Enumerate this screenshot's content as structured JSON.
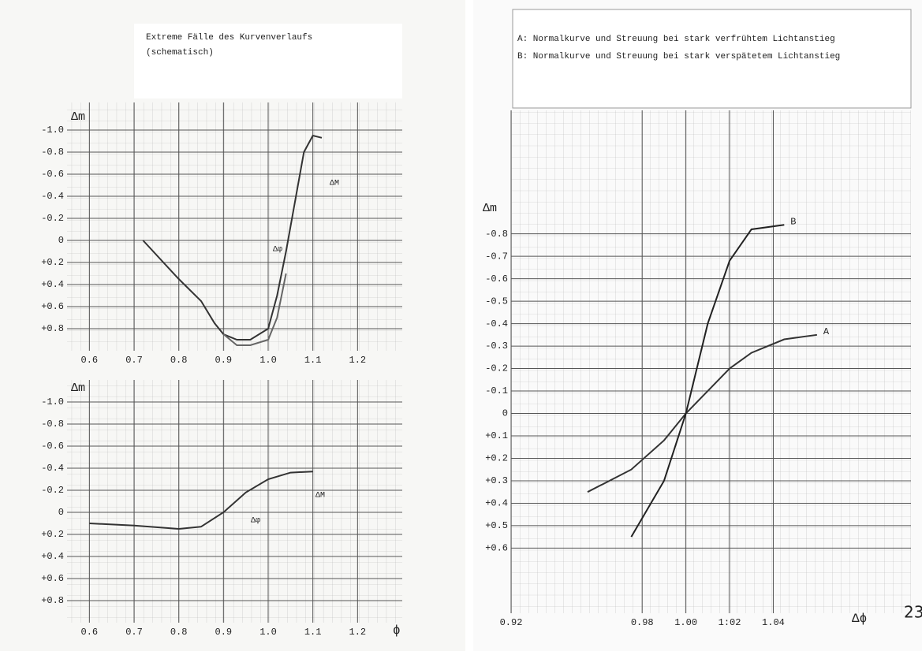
{
  "chart_data": [
    {
      "type": "line",
      "title": "Extreme Fälle des Kurvenverlaufs",
      "subtitle": "(schematisch)",
      "y_label": "Δm",
      "annotations": [
        "ΔM",
        "Δφ"
      ],
      "x": [
        0.72,
        0.8,
        0.85,
        0.88,
        0.9,
        0.93,
        0.96,
        1.0,
        1.02,
        1.04,
        1.06,
        1.08,
        1.1,
        1.12
      ],
      "series": [
        {
          "color": "#333333",
          "values": [
            0,
            0.35,
            0.55,
            0.75,
            0.85,
            0.9,
            0.9,
            0.8,
            0.5,
            0.1,
            -0.35,
            -0.8,
            -0.95,
            -0.93
          ]
        },
        {
          "color": "#666666",
          "values": [
            null,
            null,
            null,
            null,
            0.85,
            0.95,
            0.95,
            0.9,
            0.7,
            0.3,
            null,
            null,
            null,
            null
          ]
        }
      ],
      "xlim": [
        0.55,
        1.3
      ],
      "ylim": [
        1.0,
        -1.25
      ],
      "xticks": [
        0.6,
        0.7,
        0.8,
        0.9,
        {
          "value": 1,
          "label": "1.0"
        },
        1.1,
        1.2
      ],
      "yticks": [
        {
          "value": -1,
          "label": "-1.0"
        },
        -0.8,
        -0.6,
        -0.4,
        -0.2,
        0,
        {
          "value": 0.2,
          "label": "+0.2"
        },
        {
          "value": 0.4,
          "label": "+0.4"
        },
        {
          "value": 0.6,
          "label": "+0.6"
        },
        {
          "value": 0.8,
          "label": "+0.8"
        }
      ],
      "grid": true
    },
    {
      "type": "line",
      "y_label": "Δm",
      "x_label": "ϕ",
      "annotations": [
        "ΔM",
        "Δφ"
      ],
      "x": [
        0.6,
        0.7,
        0.8,
        0.85,
        0.9,
        0.95,
        1.0,
        1.05,
        1.1
      ],
      "series": [
        {
          "color": "#333333",
          "values": [
            0.1,
            0.12,
            0.15,
            0.13,
            0,
            -0.18,
            -0.3,
            -0.36,
            -0.37
          ]
        }
      ],
      "xlim": [
        0.55,
        1.3
      ],
      "ylim": [
        1.0,
        -1.2
      ],
      "xticks": [
        0.6,
        0.7,
        0.8,
        0.9,
        {
          "value": 1,
          "label": "1.0"
        },
        1.1,
        1.2
      ],
      "yticks": [
        {
          "value": -1,
          "label": "-1.0"
        },
        -0.8,
        -0.6,
        -0.4,
        -0.2,
        0,
        {
          "value": 0.2,
          "label": "+0.2"
        },
        {
          "value": 0.4,
          "label": "+0.4"
        },
        {
          "value": 0.6,
          "label": "+0.6"
        },
        {
          "value": 0.8,
          "label": "+0.8"
        }
      ],
      "grid": true
    },
    {
      "type": "line",
      "title": "A: Normalkurve und Streuung bei stark verfrühtem Lichtanstieg",
      "subtitle": "B: Normalkurve und Streuung bei stark verspätetem Lichtanstieg",
      "y_label": "Δm",
      "x_label": "Δϕ",
      "x": [
        0.955,
        0.975,
        0.99,
        1.0,
        1.01,
        1.02,
        1.03,
        1.045,
        1.06
      ],
      "series": [
        {
          "name": "A",
          "color": "#333333",
          "values": [
            0.35,
            0.25,
            0.12,
            0,
            -0.1,
            -0.2,
            -0.27,
            -0.33,
            -0.35
          ]
        },
        {
          "name": "B",
          "color": "#222222",
          "values": [
            null,
            0.55,
            0.3,
            0,
            -0.4,
            -0.68,
            -0.82,
            -0.84,
            null
          ]
        }
      ],
      "xlim": [
        0.92,
        1.103
      ],
      "ylim": [
        0.89,
        -1.35
      ],
      "xticks": [
        0.92,
        0.98,
        {
          "value": 1,
          "label": "1.00"
        },
        {
          "value": 1.02,
          "label": "1:02"
        },
        1.04
      ],
      "yticks": [
        -0.8,
        -0.7,
        -0.6,
        -0.5,
        -0.4,
        -0.3,
        -0.2,
        -0.1,
        0,
        {
          "value": 0.1,
          "label": "+0.1"
        },
        {
          "value": 0.2,
          "label": "+0.2"
        },
        {
          "value": 0.3,
          "label": "+0.3"
        },
        {
          "value": 0.4,
          "label": "+0.4"
        },
        {
          "value": 0.5,
          "label": "+0.5"
        },
        {
          "value": 0.6,
          "label": "+0.6"
        }
      ],
      "grid": true
    }
  ],
  "page_number": "23"
}
